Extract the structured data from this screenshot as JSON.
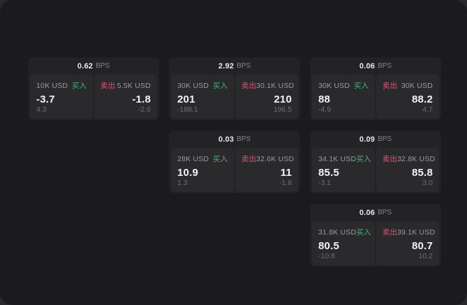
{
  "theme": {
    "window_bg": "#1b1b1d",
    "card_bg": "#232325",
    "cell_bg": "#2a2a2d",
    "buy_color": "#3eb876",
    "sell_color": "#dd5273"
  },
  "labels": {
    "buy": "买入",
    "sell": "卖出",
    "bps_unit": "BPS"
  },
  "cards": [
    {
      "bps": "0.62",
      "buy": {
        "amount": "10K USD",
        "value": "-3.7",
        "sub": "4.3"
      },
      "sell": {
        "amount": "5.5K USD",
        "value": "-1.8",
        "sub": "-2.6"
      }
    },
    {
      "bps": "2.92",
      "buy": {
        "amount": "30K USD",
        "value": "201",
        "sub": "-188.1"
      },
      "sell": {
        "amount": "30.1K USD",
        "value": "210",
        "sub": "196.5"
      }
    },
    {
      "bps": "0.06",
      "buy": {
        "amount": "30K USD",
        "value": "88",
        "sub": "-4.9"
      },
      "sell": {
        "amount": "30K USD",
        "value": "88.2",
        "sub": "4.7"
      }
    },
    {
      "bps": "0.03",
      "buy": {
        "amount": "28K USD",
        "value": "10.9",
        "sub": "1.3"
      },
      "sell": {
        "amount": "32.6K USD",
        "value": "11",
        "sub": "-1.8"
      }
    },
    {
      "bps": "0.09",
      "buy": {
        "amount": "34.1K USD",
        "value": "85.5",
        "sub": "-3.1"
      },
      "sell": {
        "amount": "32.8K USD",
        "value": "85.8",
        "sub": "3.0"
      }
    },
    {
      "bps": "0.06",
      "buy": {
        "amount": "31.8K USD",
        "value": "80.5",
        "sub": "-10.8"
      },
      "sell": {
        "amount": "39.1K USD",
        "value": "80.7",
        "sub": "10.2"
      }
    }
  ]
}
